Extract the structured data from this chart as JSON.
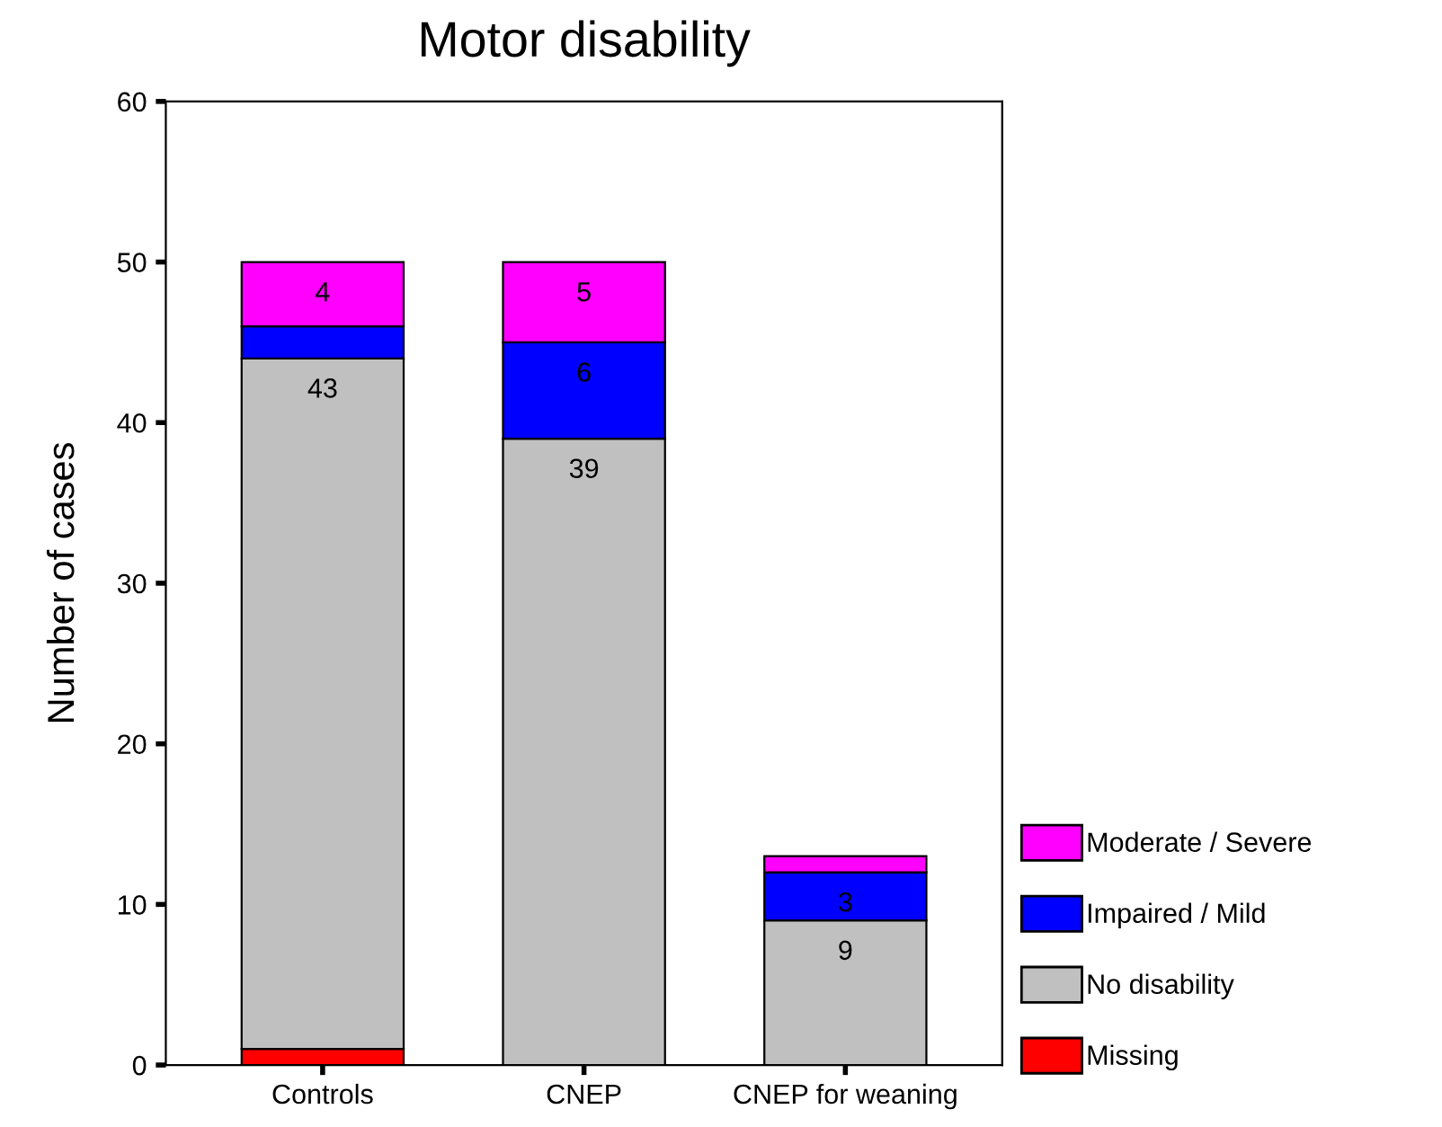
{
  "chart_data": {
    "type": "bar",
    "title": "Motor disability",
    "ylabel": "Number of cases",
    "categories": [
      "Controls",
      "CNEP",
      "CNEP for weaning"
    ],
    "stacked": true,
    "ylim": [
      0,
      60
    ],
    "yticks": [
      0,
      10,
      20,
      30,
      40,
      50,
      60
    ],
    "grid": false,
    "legend": "right",
    "series": [
      {
        "name": "Missing",
        "color": "#ff0000",
        "values": [
          1,
          0,
          0
        ],
        "value_labels": [
          null,
          null,
          null
        ]
      },
      {
        "name": "No disability",
        "color": "#c0c0c0",
        "values": [
          43,
          39,
          9
        ],
        "value_labels": [
          "43",
          "39",
          "9"
        ]
      },
      {
        "name": "Impaired / Mild",
        "color": "#0000ff",
        "values": [
          2,
          6,
          3
        ],
        "value_labels": [
          null,
          "6",
          "3"
        ]
      },
      {
        "name": "Moderate / Severe",
        "color": "#ff00ff",
        "values": [
          4,
          5,
          1
        ],
        "value_labels": [
          "4",
          "5",
          null
        ]
      }
    ]
  }
}
